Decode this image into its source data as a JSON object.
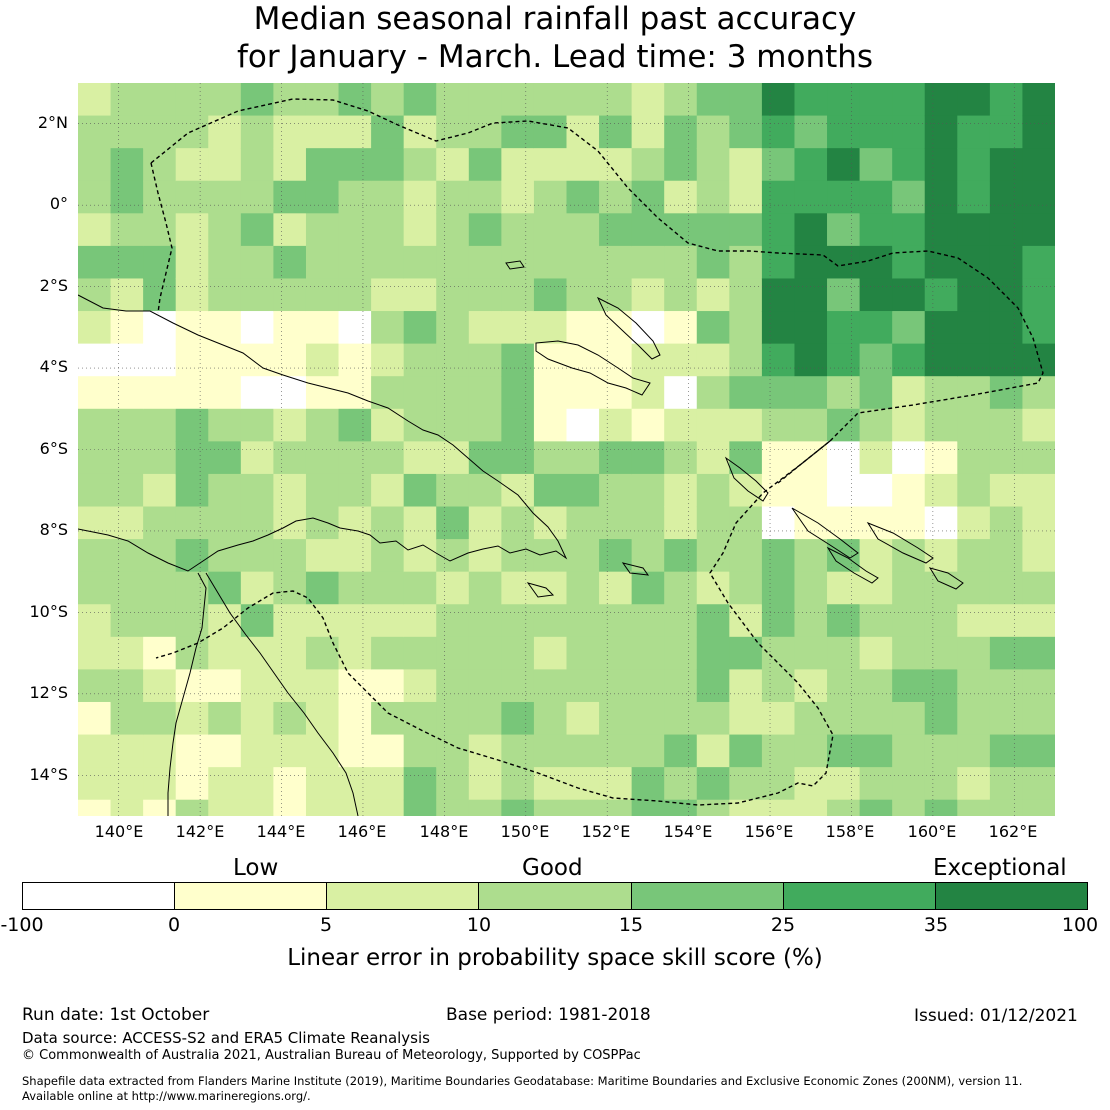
{
  "title": {
    "line1": "Median seasonal rainfall past accuracy",
    "line2": "for January - March. Lead time: 3 months"
  },
  "map": {
    "lat_labels": [
      "2°N",
      "0°",
      "2°S",
      "4°S",
      "6°S",
      "8°S",
      "10°S",
      "12°S",
      "14°S"
    ],
    "lon_labels": [
      "140°E",
      "142°E",
      "144°E",
      "146°E",
      "148°E",
      "150°E",
      "152°E",
      "154°E",
      "156°E",
      "158°E",
      "160°E",
      "162°E"
    ],
    "lon_range": [
      139,
      163
    ],
    "lat_range": [
      -15,
      3
    ],
    "grid_step_deg": 0.8
  },
  "colorbar": {
    "categories": [
      "Low",
      "Good",
      "Exceptional"
    ],
    "ticks": [
      "-100",
      "0",
      "5",
      "10",
      "15",
      "25",
      "35",
      "100"
    ],
    "colors": [
      "#ffffff",
      "#ffffcc",
      "#d9f0a3",
      "#addd8e",
      "#78c679",
      "#41ab5d",
      "#238443"
    ],
    "label": "Linear error in probability space skill score (%)"
  },
  "footer": {
    "run_date": "Run date: 1st October",
    "base_period": "Base period: 1981-2018",
    "issued": "Issued: 01/12/2021",
    "data_source": "Data source: ACCESS-S2 and ERA5 Climate Reanalysis",
    "copyright": "© Commonwealth of Australia 2021, Australian Bureau of Meteorology, Supported by COSPPac",
    "shapefile_line1": "Shapefile data extracted from Flanders Marine Institute (2019), Maritime Boundaries Geodatabase: Maritime Boundaries and Exclusive Economic Zones (200NM), version 11.",
    "shapefile_line2": "Available online at http://www.marineregions.org/."
  }
}
